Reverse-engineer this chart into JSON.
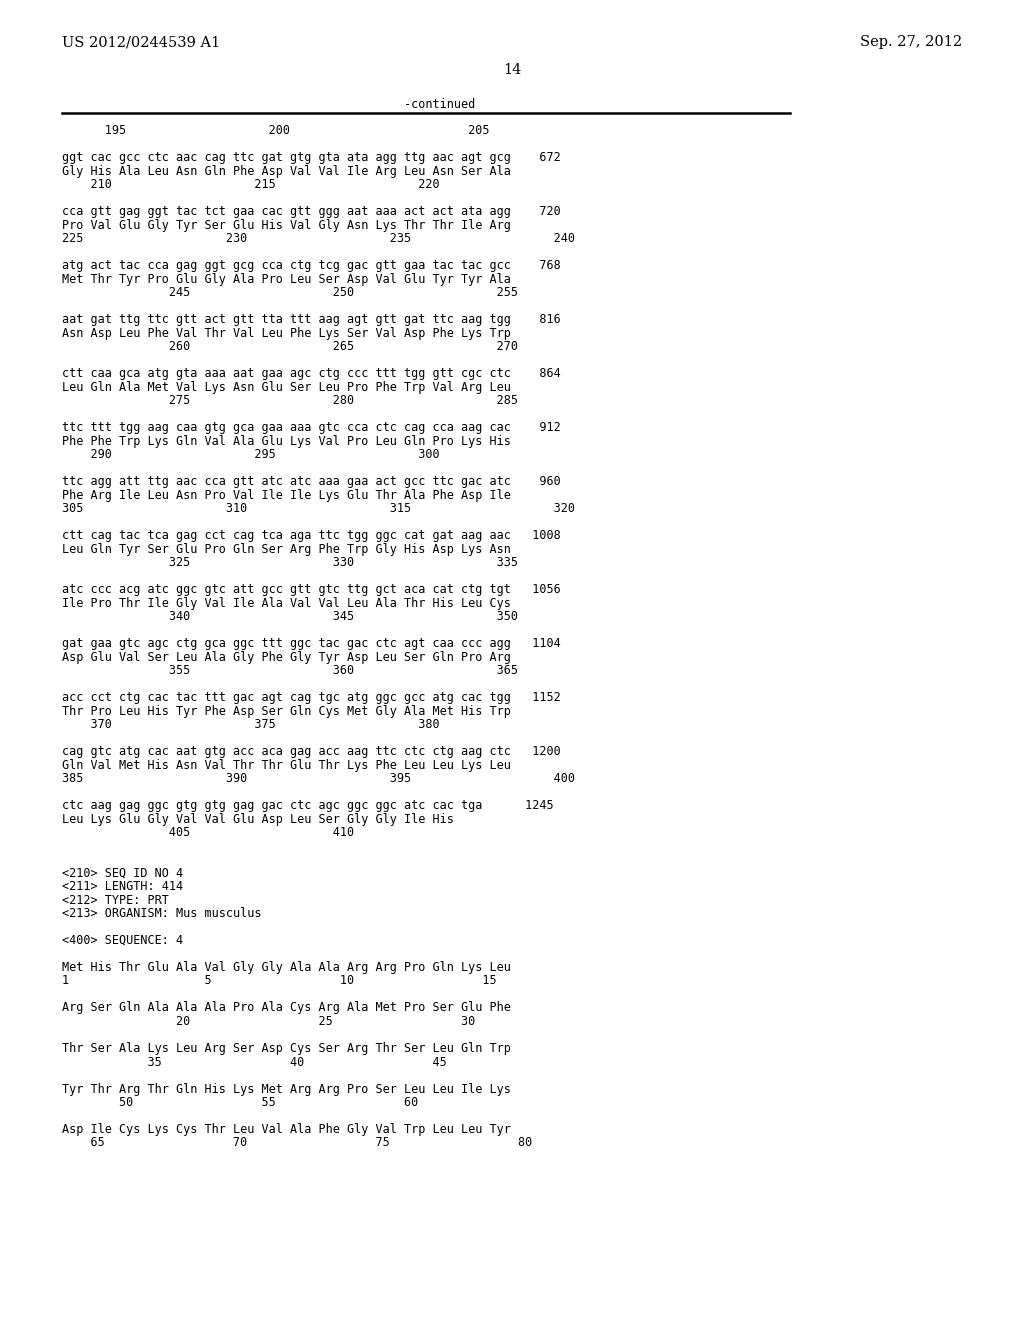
{
  "header_left": "US 2012/0244539 A1",
  "header_right": "Sep. 27, 2012",
  "page_number": "14",
  "continued_label": "-continued",
  "bg_color": "#ffffff",
  "text_color": "#000000",
  "body_fontsize": 8.5,
  "header_fontsize": 10.5,
  "content": [
    "      195                    200                         205",
    "",
    "ggt cac gcc ctc aac cag ttc gat gtg gta ata agg ttg aac agt gcg    672",
    "Gly His Ala Leu Asn Gln Phe Asp Val Val Ile Arg Leu Asn Ser Ala",
    "    210                    215                    220",
    "",
    "cca gtt gag ggt tac tct gaa cac gtt ggg aat aaa act act ata agg    720",
    "Pro Val Glu Gly Tyr Ser Glu His Val Gly Asn Lys Thr Thr Ile Arg",
    "225                    230                    235                    240",
    "",
    "atg act tac cca gag ggt gcg cca ctg tcg gac gtt gaa tac tac gcc    768",
    "Met Thr Tyr Pro Glu Gly Ala Pro Leu Ser Asp Val Glu Tyr Tyr Ala",
    "               245                    250                    255",
    "",
    "aat gat ttg ttc gtt act gtt tta ttt aag agt gtt gat ttc aag tgg    816",
    "Asn Asp Leu Phe Val Thr Val Leu Phe Lys Ser Val Asp Phe Lys Trp",
    "               260                    265                    270",
    "",
    "ctt caa gca atg gta aaa aat gaa agc ctg ccc ttt tgg gtt cgc ctc    864",
    "Leu Gln Ala Met Val Lys Asn Glu Ser Leu Pro Phe Trp Val Arg Leu",
    "               275                    280                    285",
    "",
    "ttc ttt tgg aag caa gtg gca gaa aaa gtc cca ctc cag cca aag cac    912",
    "Phe Phe Trp Lys Gln Val Ala Glu Lys Val Pro Leu Gln Pro Lys His",
    "    290                    295                    300",
    "",
    "ttc agg att ttg aac cca gtt atc atc aaa gaa act gcc ttc gac atc    960",
    "Phe Arg Ile Leu Asn Pro Val Ile Ile Lys Glu Thr Ala Phe Asp Ile",
    "305                    310                    315                    320",
    "",
    "ctt cag tac tca gag cct cag tca aga ttc tgg ggc cat gat aag aac   1008",
    "Leu Gln Tyr Ser Glu Pro Gln Ser Arg Phe Trp Gly His Asp Lys Asn",
    "               325                    330                    335",
    "",
    "atc ccc acg atc ggc gtc att gcc gtt gtc ttg gct aca cat ctg tgt   1056",
    "Ile Pro Thr Ile Gly Val Ile Ala Val Val Leu Ala Thr His Leu Cys",
    "               340                    345                    350",
    "",
    "gat gaa gtc agc ctg gca ggc ttt ggc tac gac ctc agt caa ccc agg   1104",
    "Asp Glu Val Ser Leu Ala Gly Phe Gly Tyr Asp Leu Ser Gln Pro Arg",
    "               355                    360                    365",
    "",
    "acc cct ctg cac tac ttt gac agt cag tgc atg ggc gcc atg cac tgg   1152",
    "Thr Pro Leu His Tyr Phe Asp Ser Gln Cys Met Gly Ala Met His Trp",
    "    370                    375                    380",
    "",
    "cag gtc atg cac aat gtg acc aca gag acc aag ttc ctc ctg aag ctc   1200",
    "Gln Val Met His Asn Val Thr Thr Glu Thr Lys Phe Leu Leu Lys Leu",
    "385                    390                    395                    400",
    "",
    "ctc aag gag ggc gtg gtg gag gac ctc agc ggc ggc atc cac tga      1245",
    "Leu Lys Glu Gly Val Val Glu Asp Leu Ser Gly Gly Ile His",
    "               405                    410",
    "",
    "",
    "<210> SEQ ID NO 4",
    "<211> LENGTH: 414",
    "<212> TYPE: PRT",
    "<213> ORGANISM: Mus musculus",
    "",
    "<400> SEQUENCE: 4",
    "",
    "Met His Thr Glu Ala Val Gly Gly Ala Ala Arg Arg Pro Gln Lys Leu",
    "1                   5                  10                  15",
    "",
    "Arg Ser Gln Ala Ala Ala Pro Ala Cys Arg Ala Met Pro Ser Glu Phe",
    "                20                  25                  30",
    "",
    "Thr Ser Ala Lys Leu Arg Ser Asp Cys Ser Arg Thr Ser Leu Gln Trp",
    "            35                  40                  45",
    "",
    "Tyr Thr Arg Thr Gln His Lys Met Arg Arg Pro Ser Leu Leu Ile Lys",
    "        50                  55                  60",
    "",
    "Asp Ile Cys Lys Cys Thr Leu Val Ala Phe Gly Val Trp Leu Leu Tyr",
    "    65                  70                  75                  80"
  ]
}
